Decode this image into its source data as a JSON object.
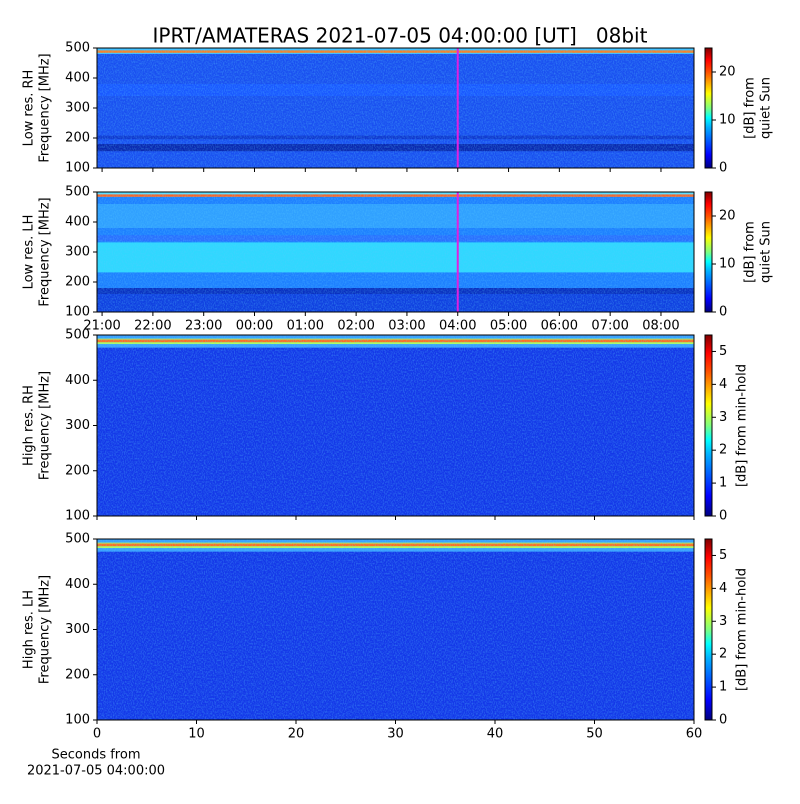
{
  "chart_data": [
    {
      "type": "heatmap",
      "title": "IPRT/AMATERAS 2021-07-05 04:00:00 [UT]   08bit",
      "ylabel": [
        "Low res. RH",
        "Frequency [MHz]"
      ],
      "ylim": [
        100,
        500
      ],
      "yticks": [
        100,
        200,
        300,
        400,
        500
      ],
      "xlim": [
        20.9,
        32.65
      ],
      "xticks": [
        21,
        22,
        23,
        24,
        25,
        26,
        27,
        28,
        29,
        30,
        31,
        32
      ],
      "xtick_labels": false,
      "vline": 28,
      "vline_color": "#e020e0",
      "colorbar": {
        "label": [
          "[dB] from",
          "quiet Sun"
        ],
        "lim": [
          0,
          25
        ],
        "ticks": [
          0,
          10,
          20
        ]
      },
      "style": "low-rh"
    },
    {
      "type": "heatmap",
      "ylabel": [
        "Low res. LH",
        "Frequency [MHz]"
      ],
      "ylim": [
        100,
        500
      ],
      "yticks": [
        100,
        200,
        300,
        400,
        500
      ],
      "xlim": [
        20.9,
        32.65
      ],
      "xticks": [
        {
          "value": 21,
          "label": "21:00"
        },
        {
          "value": 22,
          "label": "22:00"
        },
        {
          "value": 23,
          "label": "23:00"
        },
        {
          "value": 24,
          "label": "00:00"
        },
        {
          "value": 25,
          "label": "01:00"
        },
        {
          "value": 26,
          "label": "02:00"
        },
        {
          "value": 27,
          "label": "03:00"
        },
        {
          "value": 28,
          "label": "04:00"
        },
        {
          "value": 29,
          "label": "05:00"
        },
        {
          "value": 30,
          "label": "06:00"
        },
        {
          "value": 31,
          "label": "07:00"
        },
        {
          "value": 32,
          "label": "08:00"
        }
      ],
      "xtick_labels": true,
      "vline": 28,
      "vline_color": "#e020e0",
      "colorbar": {
        "label": [
          "[dB] from",
          "quiet Sun"
        ],
        "lim": [
          0,
          25
        ],
        "ticks": [
          0,
          10,
          20
        ]
      },
      "style": "low-lh"
    },
    {
      "type": "heatmap",
      "ylabel": [
        "High res. RH",
        "Frequency [MHz]"
      ],
      "ylim": [
        100,
        500
      ],
      "yticks": [
        100,
        200,
        300,
        400,
        500
      ],
      "xlim": [
        0,
        60
      ],
      "xticks": [
        0,
        10,
        20,
        30,
        40,
        50,
        60
      ],
      "xtick_labels": false,
      "colorbar": {
        "label": [
          "[dB] from min-hold"
        ],
        "lim": [
          0,
          5.5
        ],
        "ticks": [
          0,
          1,
          2,
          3,
          4,
          5
        ]
      },
      "style": "high"
    },
    {
      "type": "heatmap",
      "ylabel": [
        "High res. LH",
        "Frequency [MHz]"
      ],
      "ylim": [
        100,
        500
      ],
      "yticks": [
        100,
        200,
        300,
        400,
        500
      ],
      "xlim": [
        0,
        60
      ],
      "xticks": [
        0,
        10,
        20,
        30,
        40,
        50,
        60
      ],
      "xtick_labels": true,
      "xlabel": [
        "Seconds from",
        "2021-07-05 04:00:00"
      ],
      "colorbar": {
        "label": [
          "[dB] from min-hold"
        ],
        "lim": [
          0,
          5.5
        ],
        "ticks": [
          0,
          1,
          2,
          3,
          4,
          5
        ]
      },
      "style": "high"
    }
  ]
}
